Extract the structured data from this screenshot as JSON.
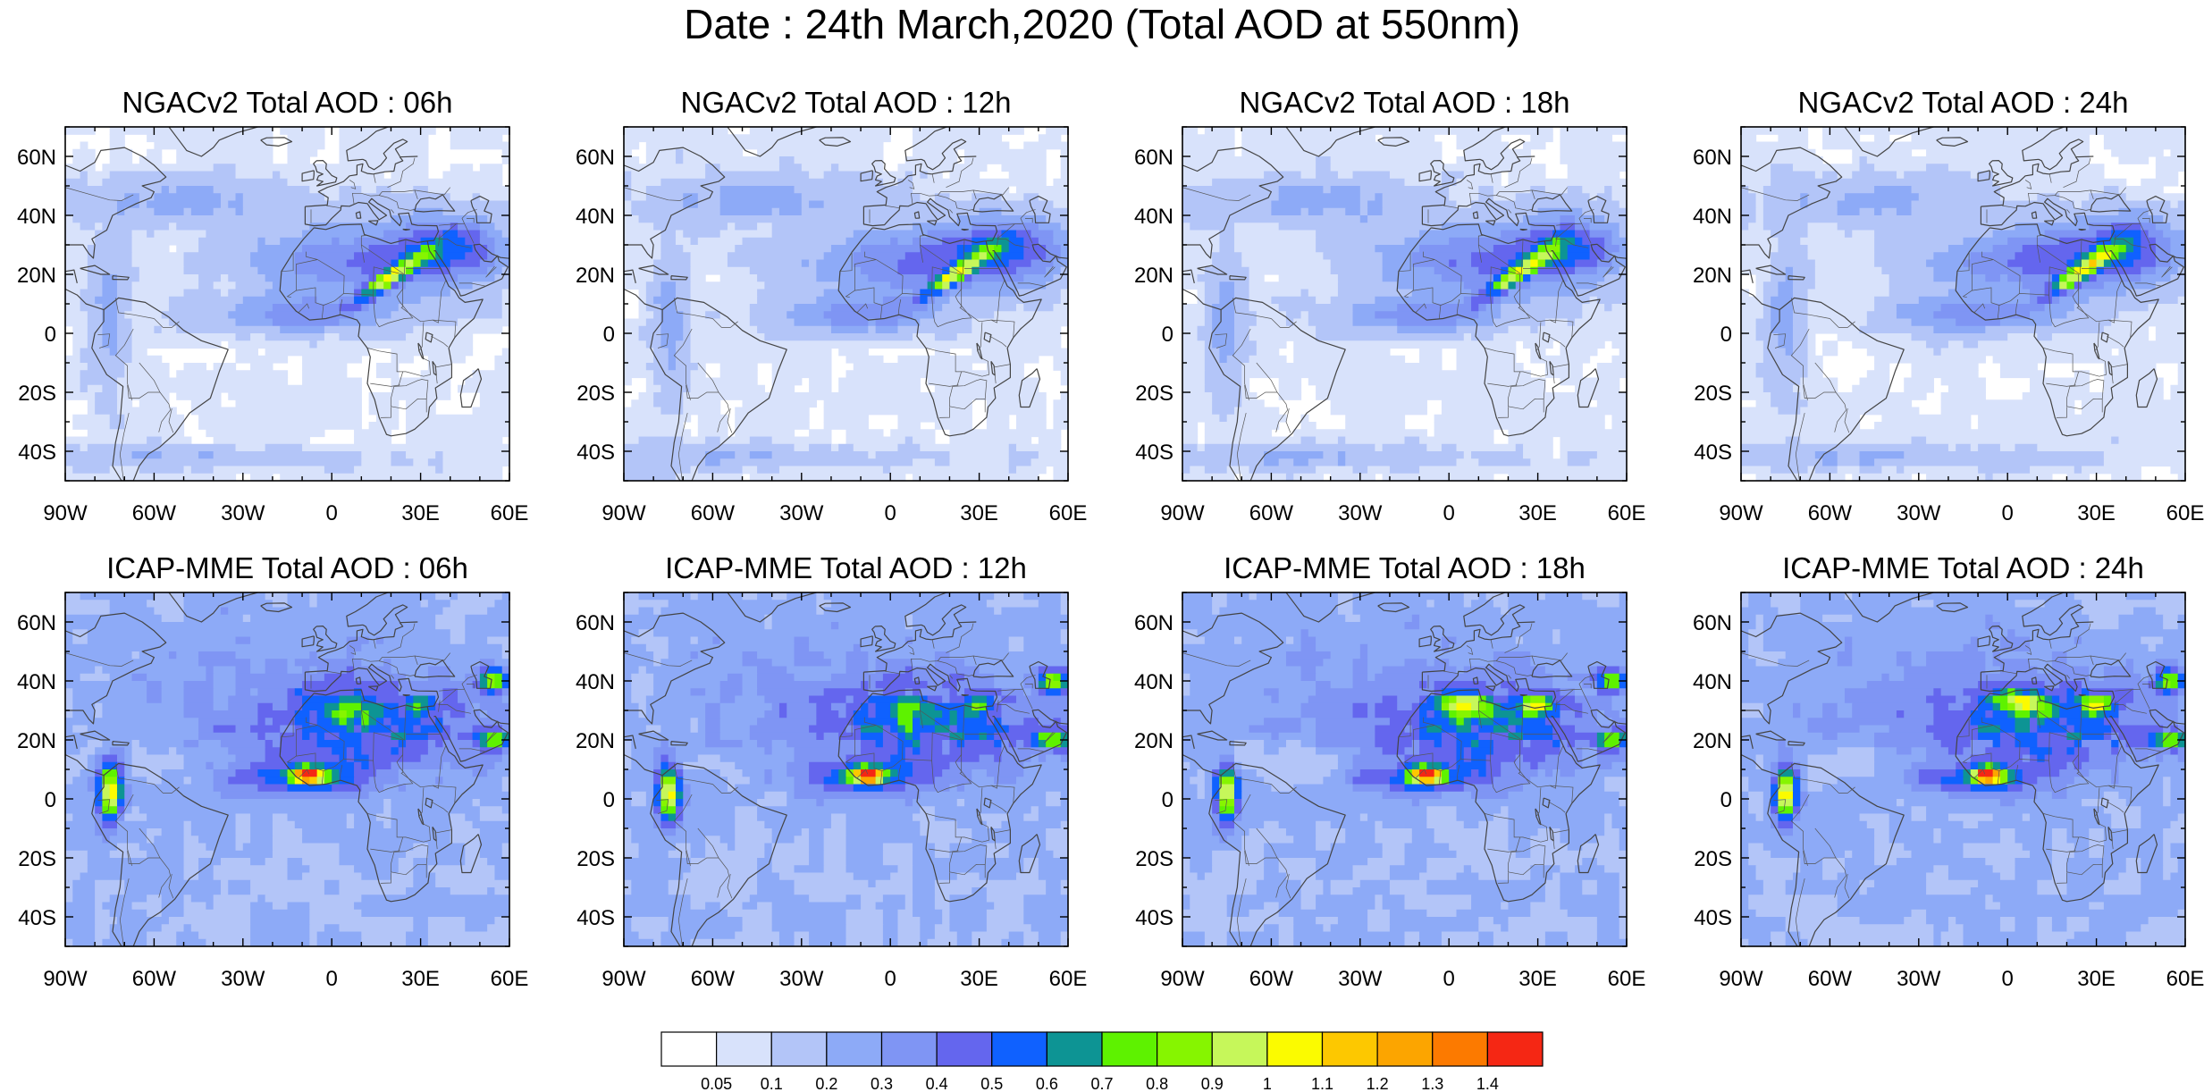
{
  "title": "Date : 24th March,2020 (Total AOD at 550nm)",
  "panels": [
    {
      "title": "NGACv2 Total AOD : 06h",
      "model": "NGACv2",
      "hour": "06h"
    },
    {
      "title": "NGACv2 Total AOD : 12h",
      "model": "NGACv2",
      "hour": "12h"
    },
    {
      "title": "NGACv2 Total AOD : 18h",
      "model": "NGACv2",
      "hour": "18h"
    },
    {
      "title": "NGACv2 Total AOD : 24h",
      "model": "NGACv2",
      "hour": "24h"
    },
    {
      "title": "ICAP-MME Total AOD : 06h",
      "model": "ICAP-MME",
      "hour": "06h"
    },
    {
      "title": "ICAP-MME Total AOD : 12h",
      "model": "ICAP-MME",
      "hour": "12h"
    },
    {
      "title": "ICAP-MME Total AOD : 18h",
      "model": "ICAP-MME",
      "hour": "18h"
    },
    {
      "title": "ICAP-MME Total AOD : 24h",
      "model": "ICAP-MME",
      "hour": "24h"
    }
  ],
  "map_extent": {
    "lon": [
      -90,
      60
    ],
    "lat": [
      -50,
      70
    ]
  },
  "x_ticks": [
    {
      "value": -90,
      "label": "90W"
    },
    {
      "value": -60,
      "label": "60W"
    },
    {
      "value": -30,
      "label": "30W"
    },
    {
      "value": 0,
      "label": "0"
    },
    {
      "value": 30,
      "label": "30E"
    },
    {
      "value": 60,
      "label": "60E"
    }
  ],
  "y_ticks": [
    {
      "value": 60,
      "label": "60N"
    },
    {
      "value": 40,
      "label": "40N"
    },
    {
      "value": 20,
      "label": "20N"
    },
    {
      "value": 0,
      "label": "0"
    },
    {
      "value": -20,
      "label": "20S"
    },
    {
      "value": -40,
      "label": "40S"
    }
  ],
  "colorbar": {
    "colors": [
      "#ffffff",
      "#d8e2fb",
      "#b3c5f8",
      "#8daaf7",
      "#7f95f4",
      "#6466ee",
      "#0f61ff",
      "#0d9494",
      "#5ef200",
      "#86f500",
      "#c6f75a",
      "#fbfb00",
      "#fdc800",
      "#fca500",
      "#fc7a00",
      "#f52714"
    ],
    "labels": [
      "0.05",
      "0.1",
      "0.2",
      "0.3",
      "0.4",
      "0.5",
      "0.6",
      "0.7",
      "0.8",
      "0.9",
      "1",
      "1.1",
      "1.2",
      "1.3",
      "1.4"
    ]
  },
  "colors": {
    "land_outline": "#444444",
    "frame": "#000000",
    "background": "#ffffff"
  }
}
